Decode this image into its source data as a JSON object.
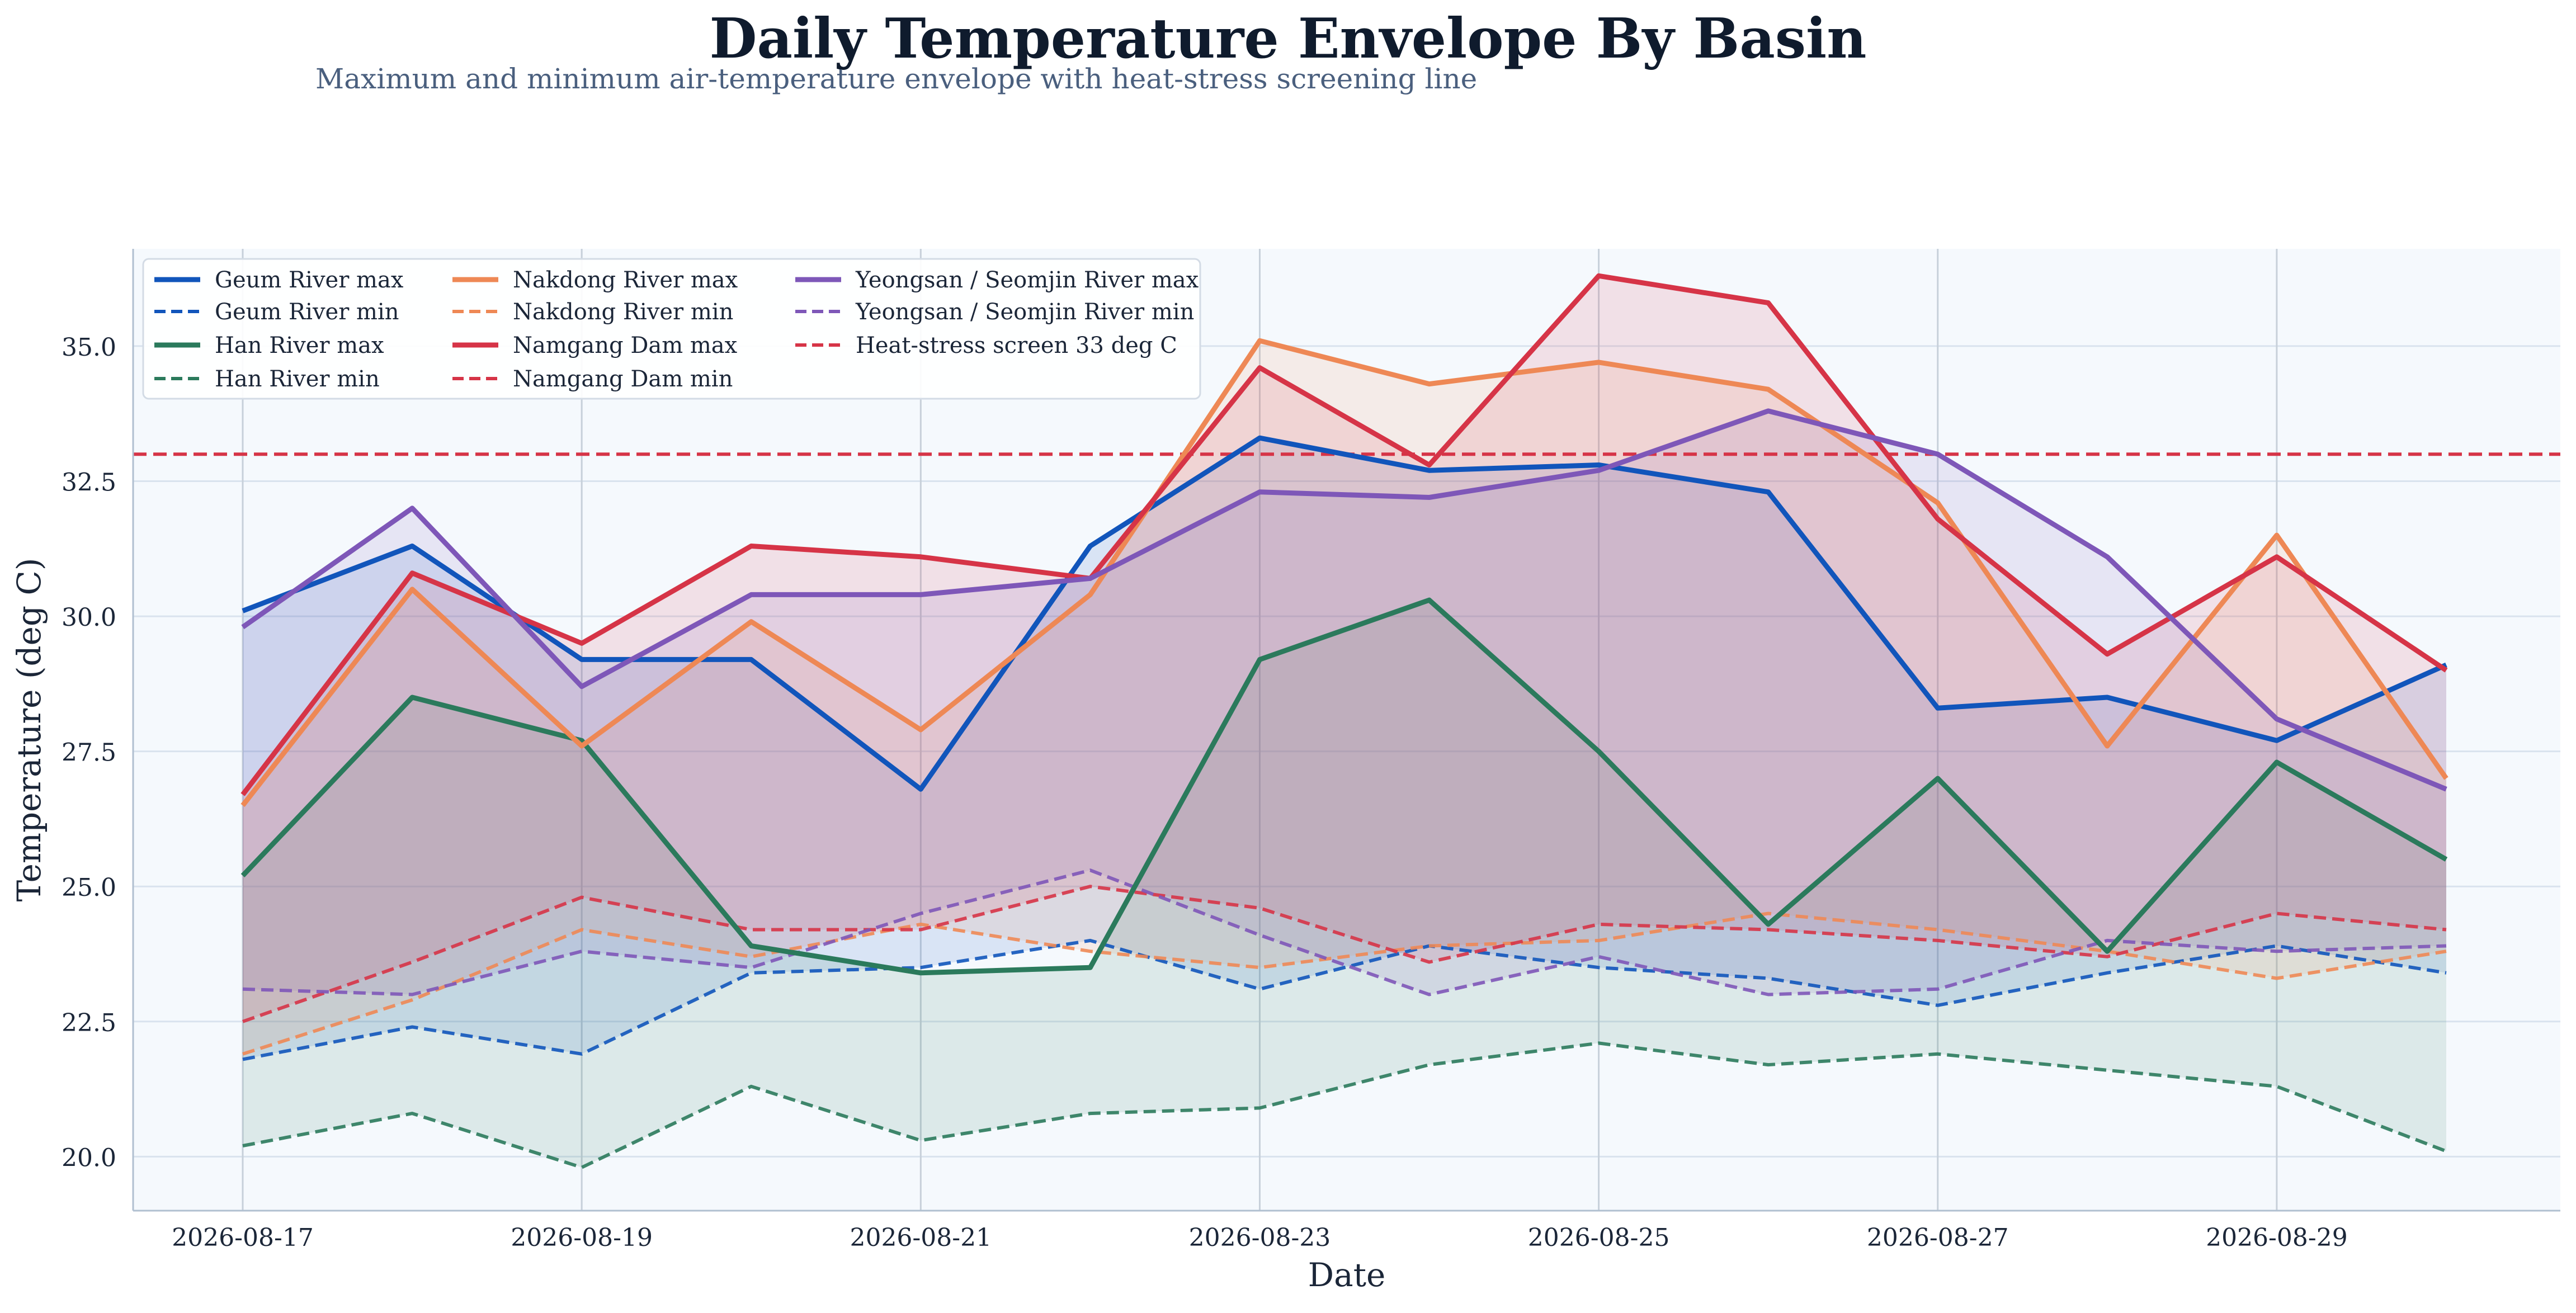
{
  "chart_data": {
    "type": "line",
    "title": "Daily Temperature Envelope By Basin",
    "subtitle": "Maximum and minimum air-temperature envelope with heat-stress screening line",
    "xlabel": "Date",
    "ylabel": "Temperature (deg C)",
    "x": [
      "2026-08-17",
      "2026-08-18",
      "2026-08-19",
      "2026-08-20",
      "2026-08-21",
      "2026-08-22",
      "2026-08-23",
      "2026-08-24",
      "2026-08-25",
      "2026-08-26",
      "2026-08-27",
      "2026-08-28",
      "2026-08-29",
      "2026-08-30"
    ],
    "x_ticks": [
      "2026-08-17",
      "2026-08-19",
      "2026-08-21",
      "2026-08-23",
      "2026-08-25",
      "2026-08-27",
      "2026-08-29"
    ],
    "ylim": [
      19.0,
      36.8
    ],
    "y_ticks": [
      "20.0",
      "22.5",
      "25.0",
      "27.5",
      "30.0",
      "32.5",
      "35.0"
    ],
    "grid": true,
    "legend_position": "top-left",
    "basins": [
      {
        "name": "Geum River",
        "color": "#1155bb",
        "max_label": "Geum River max",
        "min_label": "Geum River min",
        "max": [
          30.1,
          31.3,
          29.2,
          29.2,
          26.8,
          31.3,
          33.3,
          32.7,
          32.8,
          32.3,
          28.3,
          28.5,
          27.7,
          29.1
        ],
        "min": [
          21.8,
          22.4,
          21.9,
          23.4,
          23.5,
          24.0,
          23.1,
          23.9,
          23.5,
          23.3,
          22.8,
          23.4,
          23.9,
          23.4
        ]
      },
      {
        "name": "Han River",
        "color": "#2b7a5c",
        "max_label": "Han River max",
        "min_label": "Han River min",
        "max": [
          25.2,
          28.5,
          27.7,
          23.9,
          23.4,
          23.5,
          29.2,
          30.3,
          27.5,
          24.3,
          27.0,
          23.8,
          27.3,
          25.5
        ],
        "min": [
          20.2,
          20.8,
          19.8,
          21.3,
          20.3,
          20.8,
          20.9,
          21.7,
          22.1,
          21.7,
          21.9,
          21.6,
          21.3,
          20.1
        ]
      },
      {
        "name": "Nakdong River",
        "color": "#ee8855",
        "max_label": "Nakdong River max",
        "min_label": "Nakdong River min",
        "max": [
          26.5,
          30.5,
          27.6,
          29.9,
          27.9,
          30.4,
          35.1,
          34.3,
          34.7,
          34.2,
          32.1,
          27.6,
          31.5,
          27.0
        ],
        "min": [
          21.9,
          22.9,
          24.2,
          23.7,
          24.3,
          23.8,
          23.5,
          23.9,
          24.0,
          24.5,
          24.2,
          23.8,
          23.3,
          23.8
        ]
      },
      {
        "name": "Namgang Dam",
        "color": "#d63447",
        "max_label": "Namgang Dam max",
        "min_label": "Namgang Dam min",
        "max": [
          26.7,
          30.8,
          29.5,
          31.3,
          31.1,
          30.7,
          34.6,
          32.8,
          36.3,
          35.8,
          31.8,
          29.3,
          31.1,
          29.0
        ],
        "min": [
          22.5,
          23.6,
          24.8,
          24.2,
          24.2,
          25.0,
          24.6,
          23.6,
          24.3,
          24.2,
          24.0,
          23.7,
          24.5,
          24.2
        ]
      },
      {
        "name": "Yeongsan / Seomjin River",
        "color": "#7e57b8",
        "max_label": "Yeongsan / Seomjin River max",
        "min_label": "Yeongsan / Seomjin River min",
        "max": [
          29.8,
          32.0,
          28.7,
          30.4,
          30.4,
          30.7,
          32.3,
          32.2,
          32.7,
          33.8,
          33.0,
          31.1,
          28.1,
          26.8
        ],
        "min": [
          23.1,
          23.0,
          23.8,
          23.5,
          24.5,
          25.3,
          24.1,
          23.0,
          23.7,
          23.0,
          23.1,
          24.0,
          23.8,
          23.9
        ]
      }
    ],
    "threshold": {
      "label": "Heat-stress screen 33 deg C",
      "value": 33.0,
      "color": "#d63447"
    }
  }
}
